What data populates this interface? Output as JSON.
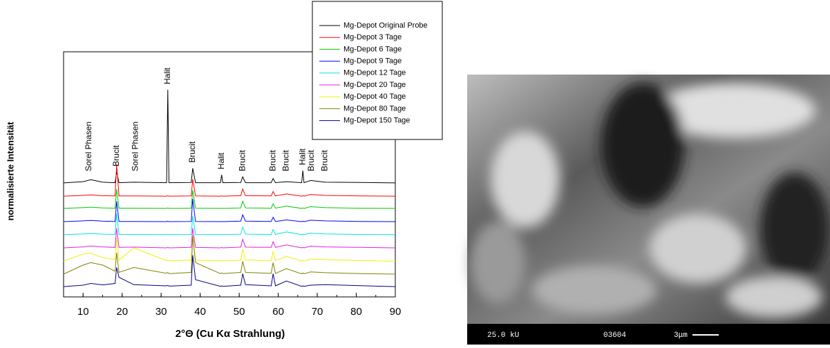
{
  "chart_data": {
    "type": "line",
    "xlabel": "2°Θ (Cu Kα Strahlung)",
    "ylabel": "normalisierte Intensität",
    "xlim": [
      5,
      90
    ],
    "xticks": [
      10,
      20,
      30,
      40,
      50,
      60,
      70,
      80,
      90
    ],
    "ylim": [
      0,
      100
    ],
    "legend": "upper right",
    "x": [
      5,
      10,
      12,
      15,
      18.2,
      18.6,
      19.2,
      23,
      31.4,
      31.7,
      32,
      37.7,
      38.1,
      38.8,
      45.2,
      45.5,
      45.8,
      50.4,
      50.9,
      51.6,
      58.2,
      58.7,
      59.3,
      62.1,
      66,
      66.3,
      66.6,
      68.3,
      72,
      81,
      90
    ],
    "series": [
      {
        "name": "Mg-Depot Original Probe",
        "color": "#000000",
        "values": [
          46.5,
          47,
          47.8,
          46.8,
          46.6,
          51,
          46.6,
          46.8,
          46.6,
          84.5,
          46.6,
          46.7,
          52.5,
          46.6,
          46.6,
          49.8,
          46.6,
          46.7,
          49,
          46.6,
          46.6,
          48.3,
          46.6,
          47,
          46.6,
          51.5,
          46.6,
          47.5,
          46.8,
          46.7,
          46.5
        ]
      },
      {
        "name": "Mg-Depot 3 Tage",
        "color": "#ff0000",
        "values": [
          41.1,
          41.4,
          41.6,
          41.3,
          41.2,
          54,
          41.2,
          41.2,
          41.1,
          41.3,
          41.1,
          41.2,
          48,
          41.2,
          41.1,
          41.2,
          41.1,
          41.3,
          44,
          41.3,
          41.2,
          43,
          41.2,
          42,
          41.1,
          41.3,
          41.1,
          41.8,
          41.4,
          41.2,
          41.1
        ]
      },
      {
        "name": "Mg-Depot 6 Tage",
        "color": "#00cc00",
        "values": [
          36.1,
          36.4,
          36.6,
          36.3,
          36.2,
          44,
          36.2,
          36.2,
          36.1,
          36.3,
          36.1,
          36.2,
          43.5,
          36.2,
          36.1,
          36.2,
          36.1,
          36.3,
          39,
          36.3,
          36.2,
          38,
          36.2,
          37,
          36.1,
          36.3,
          36.1,
          36.8,
          36.4,
          36.2,
          36.1
        ]
      },
      {
        "name": "Mg-Depot 9 Tage",
        "color": "#0000ff",
        "values": [
          30.7,
          31,
          31.2,
          30.9,
          30.8,
          39,
          30.8,
          30.8,
          30.7,
          30.9,
          30.7,
          30.8,
          40,
          30.8,
          30.7,
          30.8,
          30.7,
          30.9,
          33.5,
          30.9,
          30.8,
          32.5,
          30.8,
          31.4,
          30.7,
          30.9,
          30.7,
          31.3,
          31,
          30.8,
          30.7
        ]
      },
      {
        "name": "Mg-Depot 12 Tage",
        "color": "#00e5e5",
        "values": [
          25.4,
          25.7,
          25.9,
          25.6,
          25.5,
          34,
          25.5,
          25.5,
          25.4,
          25.6,
          25.4,
          25.5,
          33,
          25.5,
          25.4,
          25.5,
          25.4,
          25.6,
          28.5,
          25.6,
          25.5,
          27.5,
          25.5,
          26.5,
          25.4,
          25.6,
          25.4,
          26,
          25.7,
          25.5,
          25.4
        ]
      },
      {
        "name": "Mg-Depot 20 Tage",
        "color": "#e020e0",
        "values": [
          20,
          20.4,
          20.8,
          20.4,
          20.2,
          28,
          20.2,
          20.3,
          20,
          20.2,
          20,
          20.2,
          28,
          20.2,
          20,
          20.2,
          20,
          20.3,
          23.5,
          20.3,
          20.2,
          22.5,
          20.2,
          21.2,
          20,
          20.2,
          20,
          20.7,
          20.4,
          20.2,
          20
        ]
      },
      {
        "name": "Mg-Depot 40 Tage",
        "color": "#f0f000",
        "values": [
          14.6,
          17.5,
          17.8,
          16,
          15.2,
          24,
          15,
          20,
          14.8,
          15,
          14.7,
          15,
          25,
          15,
          14.7,
          15,
          14.7,
          15,
          19.5,
          15,
          14.8,
          18.5,
          14.8,
          16.5,
          14.6,
          15,
          14.6,
          15.5,
          15.2,
          14.8,
          14.6
        ]
      },
      {
        "name": "Mg-Depot 80 Tage",
        "color": "#808000",
        "values": [
          9.3,
          13,
          14,
          13,
          10.5,
          18,
          10,
          12,
          9.6,
          10,
          9.5,
          10,
          25,
          14,
          9.5,
          9.8,
          9.5,
          10,
          14.5,
          10,
          9.6,
          14,
          9.6,
          11.5,
          9.4,
          9.8,
          9.4,
          10.2,
          9.9,
          9.5,
          9.3
        ]
      },
      {
        "name": "Mg-Depot 150 Tage",
        "color": "#000080",
        "values": [
          4.2,
          4.8,
          5.5,
          4.9,
          5.5,
          12,
          8,
          5,
          4.5,
          4.7,
          4.4,
          4.8,
          17,
          7,
          4.3,
          4.5,
          4.3,
          4.8,
          9.5,
          5,
          4.5,
          9.5,
          4.5,
          6.5,
          4.3,
          4.5,
          4.3,
          4.8,
          5,
          4.6,
          4.2
        ]
      }
    ],
    "annotations": [
      {
        "text": "Sorel Phasen",
        "x": 11.5
      },
      {
        "text": "Brucit",
        "x": 18.6
      },
      {
        "text": "Sorel Phasen",
        "x": 23.5
      },
      {
        "text": "Halit",
        "x": 31.7
      },
      {
        "text": "Brucit",
        "x": 38.1
      },
      {
        "text": "Halit",
        "x": 45.5
      },
      {
        "text": "Brucit",
        "x": 50.9
      },
      {
        "text": "Brucit",
        "x": 58.7
      },
      {
        "text": "Brucit",
        "x": 62.1
      },
      {
        "text": "Halit",
        "x": 66.3
      },
      {
        "text": "Brucit",
        "x": 68.5
      },
      {
        "text": "Brucit",
        "x": 72
      }
    ]
  },
  "image": {
    "voltage": "25.0 kU",
    "number": "03604",
    "scale": "3μm"
  }
}
